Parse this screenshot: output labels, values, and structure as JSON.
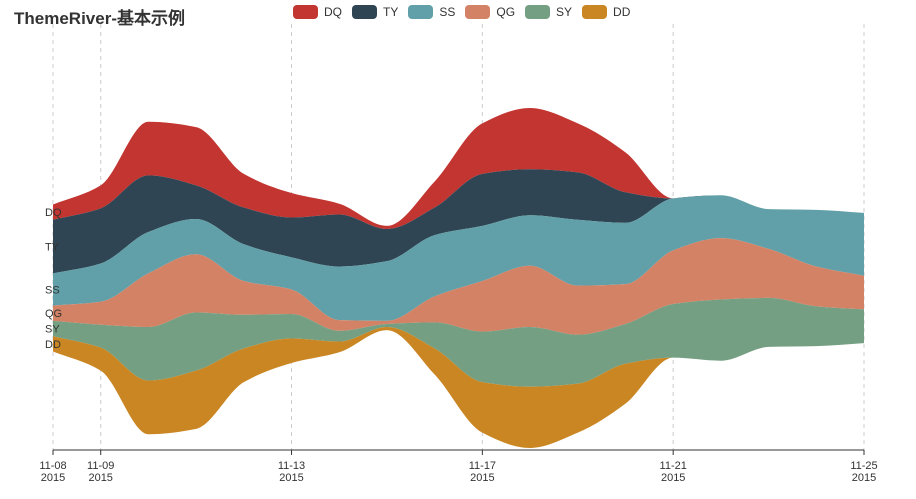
{
  "chart_data": {
    "type": "themeriver",
    "title": "ThemeRiver-基本示例",
    "x": [
      "2015/11/08",
      "2015/11/09",
      "2015/11/10",
      "2015/11/11",
      "2015/11/12",
      "2015/11/13",
      "2015/11/14",
      "2015/11/15",
      "2015/11/16",
      "2015/11/17",
      "2015/11/18",
      "2015/11/19",
      "2015/11/20",
      "2015/11/21",
      "2015/11/22",
      "2015/11/23",
      "2015/11/24",
      "2015/11/25"
    ],
    "tick_labels": [
      {
        "date": "2015/11/08",
        "line1": "11-08",
        "line2": "2015"
      },
      {
        "date": "2015/11/09",
        "line1": "11-09",
        "line2": "2015"
      },
      {
        "date": "2015/11/13",
        "line1": "11-13",
        "line2": "2015"
      },
      {
        "date": "2015/11/17",
        "line1": "11-17",
        "line2": "2015"
      },
      {
        "date": "2015/11/21",
        "line1": "11-21",
        "line2": "2015"
      },
      {
        "date": "2015/11/25",
        "line1": "11-25",
        "line2": "2015"
      }
    ],
    "legend_position": "top-center",
    "series": [
      {
        "name": "DQ",
        "color": "#c23531",
        "values": [
          10,
          15,
          35,
          38,
          22,
          16,
          7,
          2,
          17,
          33,
          40,
          32,
          26,
          0,
          0,
          0,
          0,
          0
        ]
      },
      {
        "name": "TY",
        "color": "#2f4554",
        "values": [
          35,
          36,
          37,
          22,
          24,
          26,
          34,
          21,
          18,
          34,
          30,
          31,
          20,
          0,
          0,
          0,
          0,
          0
        ]
      },
      {
        "name": "SS",
        "color": "#61a0a8",
        "values": [
          21,
          25,
          27,
          23,
          24,
          21,
          35,
          39,
          40,
          36,
          33,
          43,
          40,
          34,
          28,
          26,
          37,
          41
        ]
      },
      {
        "name": "QG",
        "color": "#d48265",
        "values": [
          10,
          15,
          35,
          38,
          22,
          16,
          7,
          2,
          17,
          33,
          40,
          32,
          26,
          35,
          40,
          32,
          26,
          22
        ]
      },
      {
        "name": "SY",
        "color": "#749f83",
        "values": [
          10,
          15,
          35,
          38,
          22,
          16,
          7,
          2,
          17,
          33,
          39,
          32,
          26,
          35,
          40,
          32,
          26,
          22
        ]
      },
      {
        "name": "DD",
        "color": "#ca8622",
        "values": [
          10,
          15,
          35,
          38,
          22,
          16,
          7,
          2,
          17,
          33,
          40,
          32,
          26,
          0,
          0,
          0,
          0,
          0
        ]
      }
    ]
  }
}
